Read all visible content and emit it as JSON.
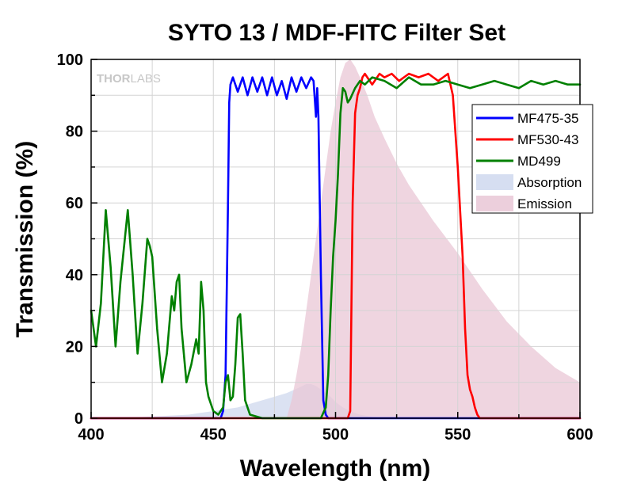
{
  "chart_data": {
    "type": "line",
    "title": "SYTO 13 / MDF-FITC Filter Set",
    "xlabel": "Wavelength (nm)",
    "ylabel": "Transmission (%)",
    "xlim": [
      400,
      600
    ],
    "ylim": [
      0,
      100
    ],
    "xticks": [
      400,
      450,
      500,
      550,
      600
    ],
    "yticks": [
      0,
      20,
      40,
      60,
      80,
      100
    ],
    "grid": true,
    "legend_position": "top-right",
    "watermark": {
      "part1": "THOR",
      "part2": "LABS"
    },
    "series": [
      {
        "name": "MF475-35",
        "kind": "line",
        "color": "#0000ff",
        "x": [
          400,
          453,
          454,
          455,
          456,
          456.5,
          457,
          458,
          460,
          462,
          464,
          466,
          468,
          470,
          472,
          474,
          476,
          478,
          480,
          482,
          484,
          486,
          488,
          490,
          491,
          492,
          492.5,
          493,
          494,
          495,
          496,
          497,
          600
        ],
        "y": [
          0,
          0,
          2,
          12,
          60,
          88,
          93,
          95,
          91,
          95,
          90,
          95,
          91,
          95,
          90,
          95,
          90,
          94,
          89,
          95,
          91,
          95,
          92,
          95,
          94,
          84,
          92,
          84,
          40,
          5,
          1,
          0,
          0
        ]
      },
      {
        "name": "MF530-43",
        "kind": "line",
        "color": "#ff0000",
        "x": [
          400,
          505,
          506,
          507,
          508,
          509,
          510,
          511,
          512,
          515,
          518,
          520,
          523,
          526,
          530,
          534,
          538,
          542,
          546,
          548,
          550,
          552,
          553,
          554,
          555,
          556,
          557,
          558,
          559,
          560,
          600
        ],
        "y": [
          0,
          0,
          2,
          60,
          85,
          90,
          92,
          95,
          96,
          93,
          96,
          95,
          96,
          94,
          96,
          95,
          96,
          94,
          96,
          90,
          70,
          45,
          25,
          12,
          8,
          6,
          3,
          1,
          0,
          0,
          0
        ]
      },
      {
        "name": "MD499",
        "kind": "line",
        "color": "#008000",
        "x": [
          400,
          402,
          404,
          406,
          408,
          410,
          412,
          415,
          417,
          419,
          421,
          423,
          424,
          425,
          427,
          429,
          431,
          433,
          434,
          435,
          436,
          437,
          439,
          441,
          443,
          444,
          445,
          446,
          447,
          448,
          449,
          450,
          452,
          454,
          455,
          456,
          457,
          458,
          459,
          460,
          461,
          462,
          463,
          465,
          470,
          480,
          490,
          494,
          496,
          497,
          498,
          499,
          500,
          501,
          502,
          503,
          504,
          505,
          506,
          508,
          510,
          512,
          515,
          520,
          525,
          530,
          535,
          540,
          545,
          550,
          555,
          560,
          565,
          570,
          575,
          580,
          585,
          590,
          595,
          600
        ],
        "y": [
          30,
          20,
          32,
          58,
          42,
          20,
          38,
          58,
          40,
          18,
          32,
          50,
          48,
          45,
          25,
          10,
          18,
          34,
          30,
          38,
          40,
          25,
          10,
          15,
          22,
          18,
          38,
          30,
          10,
          6,
          4,
          2,
          1,
          3,
          10,
          12,
          5,
          6,
          15,
          28,
          29,
          18,
          5,
          1,
          0,
          0,
          0,
          0,
          3,
          12,
          30,
          45,
          55,
          68,
          85,
          92,
          91,
          88,
          89,
          92,
          94,
          93,
          95,
          94,
          92,
          95,
          93,
          93,
          94,
          93,
          92,
          93,
          94,
          93,
          92,
          94,
          93,
          94,
          93,
          93
        ]
      },
      {
        "name": "Absorption",
        "kind": "area",
        "color": "#cfd8ee",
        "x": [
          400,
          420,
          440,
          450,
          460,
          465,
          470,
          475,
          480,
          485,
          488,
          490,
          492,
          495,
          498,
          500,
          503,
          506,
          510,
          515,
          520,
          600
        ],
        "y": [
          0,
          0.3,
          1,
          2,
          3,
          4,
          5,
          6,
          7,
          8.5,
          9.5,
          9.5,
          9,
          7.5,
          6,
          4.5,
          3,
          2,
          1,
          0.4,
          0,
          0
        ]
      },
      {
        "name": "Emission",
        "kind": "area",
        "color": "#e9c7d6",
        "x": [
          400,
          480,
          482,
          484,
          486,
          488,
          490,
          492,
          494,
          496,
          498,
          500,
          502,
          504,
          506,
          508,
          510,
          513,
          516,
          520,
          525,
          530,
          540,
          550,
          560,
          570,
          580,
          590,
          600
        ],
        "y": [
          0,
          0,
          5,
          12,
          20,
          30,
          40,
          50,
          60,
          70,
          80,
          88,
          95,
          99,
          100,
          98,
          95,
          90,
          84,
          78,
          71,
          65,
          55,
          46,
          36,
          27,
          20,
          14,
          10
        ]
      }
    ]
  }
}
